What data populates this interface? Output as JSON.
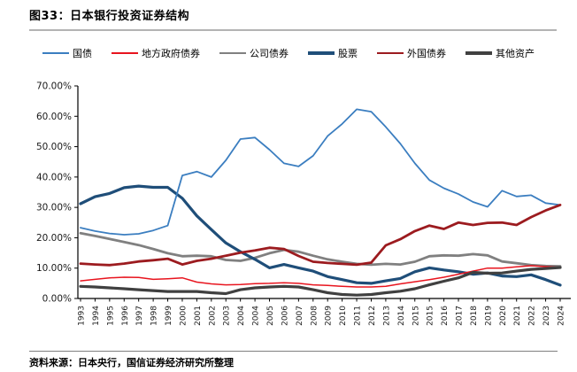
{
  "page": {
    "title": "图33：日本银行投资证券结构",
    "source": "资料来源：日本央行，国信证券经济研究所整理"
  },
  "colors": {
    "axis": "#000000",
    "tick_text": "#1a1a1a",
    "title_rule": "#b3b3b3",
    "source_rule": "#7f7f7f",
    "background": "#ffffff"
  },
  "chart_data": {
    "type": "line",
    "title": "图33：日本银行投资证券结构",
    "xlabel": "",
    "ylabel": "",
    "ylim": [
      0,
      70
    ],
    "ytick_step": 10,
    "grid": false,
    "legend_position": "top",
    "ytick_labels": [
      "0.00%",
      "10.00%",
      "20.00%",
      "30.00%",
      "40.00%",
      "50.00%",
      "60.00%",
      "70.00%"
    ],
    "categories": [
      "1993",
      "1994",
      "1995",
      "1996",
      "1997",
      "1998",
      "1999",
      "2000",
      "2001",
      "2002",
      "2003",
      "2004",
      "2004",
      "2005",
      "2006",
      "2007",
      "2008",
      "2009",
      "2010",
      "2011",
      "2012",
      "2013",
      "2014",
      "2015",
      "2015",
      "2016",
      "2017",
      "2018",
      "2019",
      "2020",
      "2021",
      "2022",
      "2023",
      "2024"
    ],
    "series": [
      {
        "key": "government-bonds",
        "name": "国债",
        "color": "#3b7ec0",
        "width": 1.8,
        "values": [
          23.3,
          22.2,
          21.4,
          21.0,
          21.3,
          22.4,
          24.0,
          40.5,
          41.8,
          40.0,
          45.5,
          52.5,
          53.0,
          49.0,
          44.5,
          43.5,
          47.0,
          53.5,
          57.5,
          62.3,
          61.5,
          56.5,
          51.0,
          44.5,
          39.0,
          36.3,
          34.4,
          31.8,
          30.2,
          35.5,
          33.6,
          34.0,
          31.4,
          30.8
        ]
      },
      {
        "key": "local-government-bonds",
        "name": "地方政府债券",
        "color": "#e8141e",
        "width": 1.5,
        "values": [
          5.8,
          6.3,
          6.8,
          7.0,
          6.9,
          6.3,
          6.5,
          6.8,
          5.4,
          4.8,
          4.5,
          4.6,
          4.9,
          5.0,
          5.2,
          5.0,
          4.5,
          4.3,
          4.0,
          3.8,
          3.8,
          4.0,
          4.8,
          5.5,
          6.2,
          7.0,
          8.0,
          9.0,
          10.0,
          10.0,
          10.4,
          10.8,
          10.5,
          10.3
        ]
      },
      {
        "key": "corporate-bonds",
        "name": "公司债券",
        "color": "#808080",
        "width": 2.8,
        "values": [
          21.5,
          20.6,
          19.6,
          18.6,
          17.6,
          16.3,
          14.9,
          13.9,
          14.1,
          13.9,
          12.7,
          12.4,
          13.4,
          14.9,
          16.0,
          15.4,
          14.1,
          12.9,
          12.1,
          11.4,
          11.1,
          11.4,
          11.2,
          12.1,
          13.9,
          14.2,
          14.1,
          14.6,
          14.2,
          12.2,
          11.6,
          11.0,
          10.7,
          10.6
        ]
      },
      {
        "key": "stocks",
        "name": "股票",
        "color": "#1f4e79",
        "width": 3.2,
        "values": [
          31.2,
          33.5,
          34.6,
          36.5,
          37.0,
          36.6,
          36.6,
          33.0,
          27.2,
          22.7,
          18.3,
          15.4,
          12.9,
          10.1,
          11.2,
          10.1,
          9.0,
          7.2,
          6.2,
          5.2,
          5.0,
          5.8,
          6.6,
          8.8,
          10.1,
          9.4,
          8.8,
          8.0,
          8.4,
          7.4,
          7.2,
          7.8,
          6.2,
          4.4
        ]
      },
      {
        "key": "foreign-bonds",
        "name": "外国债券",
        "color": "#9c1b1f",
        "width": 2.8,
        "values": [
          11.5,
          11.2,
          11.0,
          11.5,
          12.2,
          12.6,
          13.1,
          11.2,
          12.4,
          13.1,
          14.1,
          15.1,
          15.8,
          16.7,
          16.3,
          14.0,
          12.1,
          11.7,
          11.4,
          11.1,
          11.8,
          17.5,
          19.5,
          22.2,
          24.0,
          22.9,
          25.0,
          24.2,
          24.9,
          25.0,
          24.2,
          26.8,
          29.0,
          30.8
        ]
      },
      {
        "key": "other-assets",
        "name": "其他资产",
        "color": "#404040",
        "width": 3.2,
        "values": [
          4.0,
          3.8,
          3.5,
          3.2,
          2.9,
          2.6,
          2.3,
          2.3,
          2.3,
          1.9,
          1.6,
          2.9,
          3.5,
          3.8,
          4.0,
          3.8,
          2.9,
          1.9,
          1.3,
          1.1,
          1.3,
          1.9,
          2.4,
          3.2,
          4.5,
          5.7,
          6.8,
          8.6,
          8.3,
          8.4,
          9.0,
          9.6,
          9.9,
          10.2
        ]
      }
    ]
  }
}
